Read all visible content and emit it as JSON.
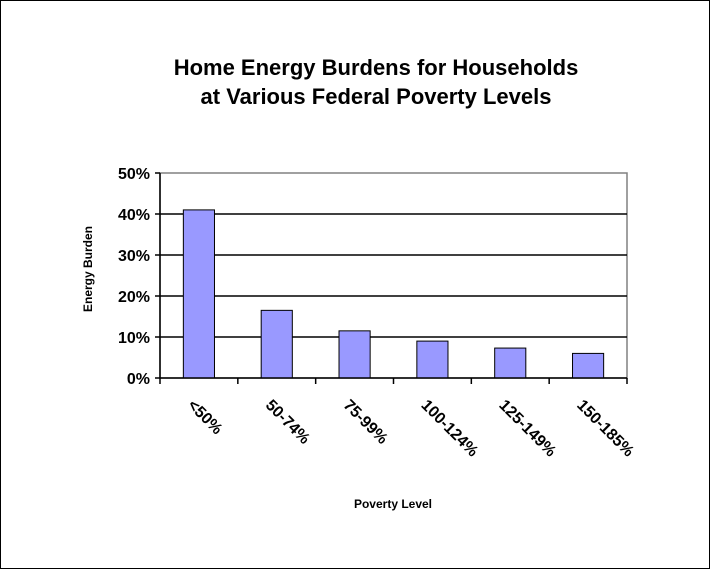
{
  "chart_data": {
    "type": "bar",
    "title": [
      "Home Energy Burdens for Households",
      "at Various Federal Poverty Levels"
    ],
    "xlabel": "Poverty Level",
    "ylabel": "Energy Burden",
    "categories": [
      "<50%",
      "50-74%",
      "75-99%",
      "100-124%",
      "125-149%",
      "150-185%"
    ],
    "values": [
      0.41,
      0.165,
      0.115,
      0.09,
      0.073,
      0.06
    ],
    "ylim": [
      0,
      0.5
    ],
    "yticks": [
      0,
      0.1,
      0.2,
      0.3,
      0.4,
      0.5
    ],
    "ytick_labels": [
      "0%",
      "10%",
      "20%",
      "30%",
      "40%",
      "50%"
    ],
    "grid": true,
    "legend": "none",
    "colors": {
      "bar_fill": "#9999ff",
      "bar_stroke": "#000000",
      "grid": "#000000",
      "plot_border": "#808080"
    }
  }
}
